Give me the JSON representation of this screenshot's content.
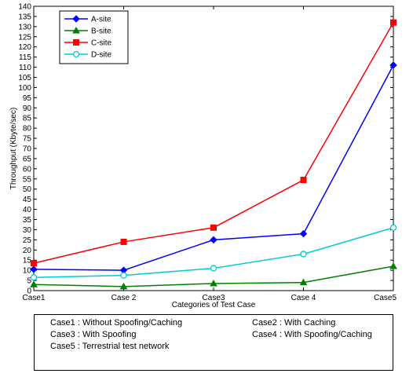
{
  "chart_data": {
    "type": "line",
    "title": "",
    "xlabel": "Categories of Test Case",
    "ylabel": "Throughput (Kbyte/sec)",
    "categories": [
      "Case1",
      "Case 2",
      "Case3",
      "Case 4",
      "Case5"
    ],
    "ylim": [
      0,
      140
    ],
    "ytick_step": 5,
    "grid": false,
    "legend_position": "top-left",
    "series": [
      {
        "name": "A-site",
        "color": "#0000ff",
        "marker": "diamond",
        "values": [
          10.5,
          10,
          25,
          28,
          111
        ]
      },
      {
        "name": "B-site",
        "color": "#008000",
        "marker": "triangle",
        "values": [
          3,
          2,
          3.5,
          4,
          12
        ]
      },
      {
        "name": "C-site",
        "color": "#ff0000",
        "marker": "square",
        "values": [
          13.5,
          24,
          31,
          54.5,
          132
        ]
      },
      {
        "name": "D-site",
        "color": "#00cccc",
        "marker": "circle",
        "values": [
          6.5,
          7.5,
          11,
          18,
          31
        ]
      }
    ]
  },
  "notes": {
    "case1": "Case1 : Without Spoofing/Caching",
    "case2": "Case2 : With Caching",
    "case3": "Case3 : With Spoofing",
    "case4": "Case4 : With Spoofing/Caching",
    "case5": "Case5 : Terrestrial test network"
  }
}
